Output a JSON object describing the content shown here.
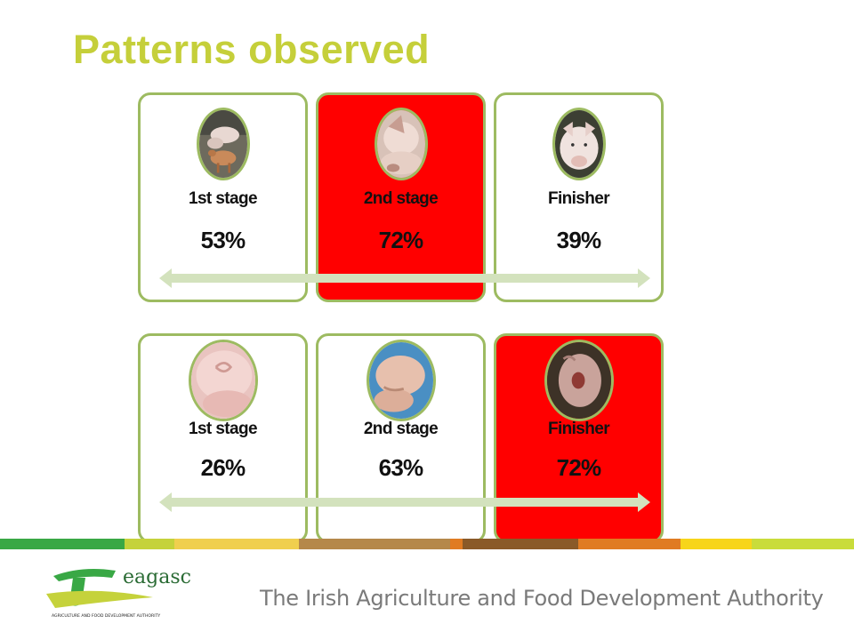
{
  "slide": {
    "title": "Patterns observed",
    "title_color": "#c5cf3a",
    "highlight_color": "#ff0000",
    "border_color": "#9dbb61",
    "arrow_color": "#d3e2bd",
    "rows": [
      {
        "cards": [
          {
            "stage": "1st stage",
            "percent": "53%",
            "highlighted": false,
            "photo": "piglets-pen"
          },
          {
            "stage": "2nd stage",
            "percent": "72%",
            "highlighted": true,
            "photo": "pig-ear"
          },
          {
            "stage": "Finisher",
            "percent": "39%",
            "highlighted": false,
            "photo": "pig-face"
          }
        ],
        "arrow": "double-headed-arrow"
      },
      {
        "cards": [
          {
            "stage": "1st stage",
            "percent": "26%",
            "highlighted": false,
            "photo": "pig-tail"
          },
          {
            "stage": "2nd stage",
            "percent": "63%",
            "highlighted": false,
            "photo": "pig-back"
          },
          {
            "stage": "Finisher",
            "percent": "72%",
            "highlighted": true,
            "photo": "pig-rear"
          }
        ],
        "arrow": "double-headed-arrow"
      }
    ]
  },
  "footer": {
    "logo_text": "eagasc",
    "logo_subtitle": "AGRICULTURE AND FOOD DEVELOPMENT AUTHORITY",
    "tagline": "The Irish Agriculture and Food Development Authority",
    "stripe_colors": [
      "#39a845",
      "#c5d23b",
      "#f0cf4e",
      "#e6a83c",
      "#b5884a",
      "#8a5a28",
      "#e07b22",
      "#f7d51a",
      "#c9dc3b"
    ]
  }
}
